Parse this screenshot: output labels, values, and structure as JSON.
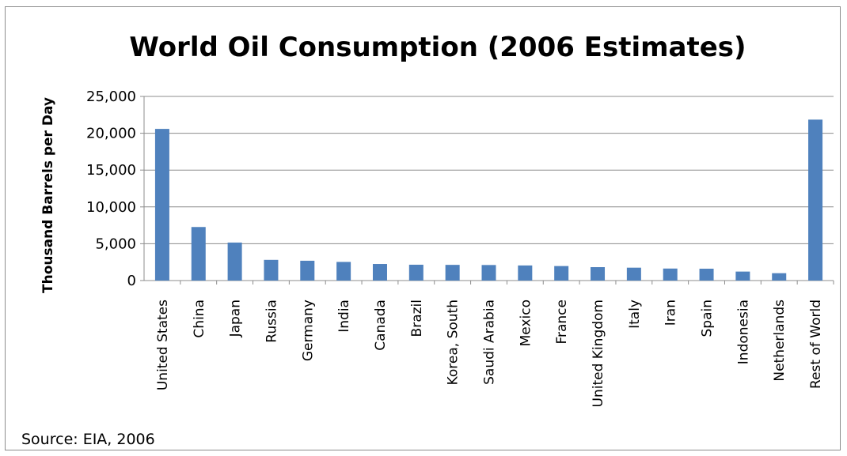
{
  "chart_data": {
    "type": "bar",
    "title": "World Oil Consumption (2006 Estimates)",
    "xlabel": "",
    "ylabel": "Thousand Barrels per Day",
    "ylim": [
      0,
      25000
    ],
    "yticks": [
      "0",
      "5,000",
      "10,000",
      "15,000",
      "20,000",
      "25,000"
    ],
    "ytick_values": [
      0,
      5000,
      10000,
      15000,
      20000,
      25000
    ],
    "grid": true,
    "legend": "none",
    "bar_color": "#4f81bd",
    "categories": [
      "United States",
      "China",
      "Japan",
      "Russia",
      "Germany",
      "India",
      "Canada",
      "Brazil",
      "Korea, South",
      "Saudi Arabia",
      "Mexico",
      "France",
      "United Kingdom",
      "Italy",
      "Iran",
      "Spain",
      "Indonesia",
      "Netherlands",
      "Rest of World"
    ],
    "values": [
      20590,
      7270,
      5160,
      2810,
      2690,
      2530,
      2250,
      2150,
      2130,
      2110,
      2050,
      1970,
      1820,
      1750,
      1630,
      1610,
      1220,
      1000,
      21850
    ]
  },
  "source_note": "Source: EIA, 2006"
}
